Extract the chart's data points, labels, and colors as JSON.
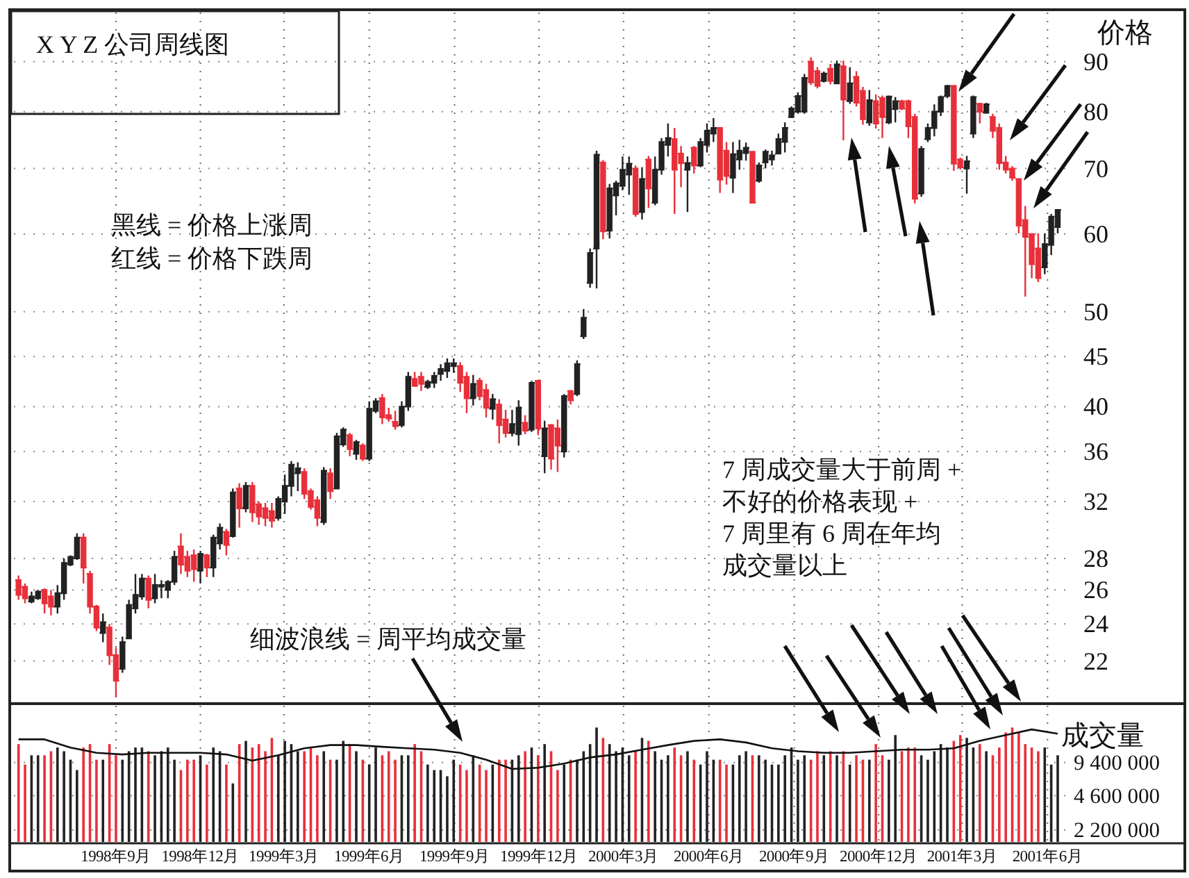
{
  "chart_data": [
    {
      "type": "candlestick",
      "title": "X Y Z 公司周线图",
      "ylabel": "价格",
      "log": true,
      "grid": true,
      "tick_labels": "y",
      "annotations": [
        "黑线 = 价格上涨周",
        "红线 = 价格下跌周",
        "7 周成交量大于前周 +",
        "不好的价格表现 +",
        "7 周里有 6 周在年均",
        "成交量以上",
        "细波浪线 = 周平均成交量"
      ],
      "ylim": [
        20,
        101
      ],
      "yticks": [
        90,
        80,
        70,
        60,
        50,
        45,
        40,
        36,
        32,
        28,
        26,
        24,
        22
      ],
      "xlim": [
        "1998-05-14",
        "2001-10-24"
      ],
      "xticks": [
        {
          "value": "1998-09-01",
          "label": null
        },
        {
          "value": "1998-12-01",
          "label": null
        },
        {
          "value": "1999-03-01",
          "label": null
        },
        {
          "value": "1999-06-01",
          "label": null
        },
        {
          "value": "1999-09-01",
          "label": null
        },
        {
          "value": "1999-12-01",
          "label": null
        },
        {
          "value": "2000-03-01",
          "label": null
        },
        {
          "value": "2000-06-01",
          "label": null
        },
        {
          "value": "2000-09-01",
          "label": null
        },
        {
          "value": "2000-12-01",
          "label": null
        },
        {
          "value": "2001-03-01",
          "label": null
        },
        {
          "value": "2001-06-01",
          "label": null
        }
      ],
      "x": [
        "1998-05-19",
        "1998-05-26",
        "1998-06-02",
        "1998-06-09",
        "1998-06-16",
        "1998-06-23",
        "1998-06-30",
        "1998-07-07",
        "1998-07-14",
        "1998-07-21",
        "1998-07-28",
        "1998-08-04",
        "1998-08-11",
        "1998-08-18",
        "1998-08-25",
        "1998-09-01",
        "1998-09-08",
        "1998-09-15",
        "1998-09-22",
        "1998-09-29",
        "1998-10-06",
        "1998-10-13",
        "1998-10-20",
        "1998-10-27",
        "1998-11-03",
        "1998-11-10",
        "1998-11-17",
        "1998-11-24",
        "1998-12-01",
        "1998-12-08",
        "1998-12-15",
        "1998-12-22",
        "1998-12-29",
        "1999-01-05",
        "1999-01-12",
        "1999-01-19",
        "1999-01-26",
        "1999-02-02",
        "1999-02-09",
        "1999-02-16",
        "1999-02-23",
        "1999-03-02",
        "1999-03-09",
        "1999-03-16",
        "1999-03-23",
        "1999-03-30",
        "1999-04-06",
        "1999-04-13",
        "1999-04-20",
        "1999-04-27",
        "1999-05-04",
        "1999-05-11",
        "1999-05-18",
        "1999-05-25",
        "1999-06-01",
        "1999-06-08",
        "1999-06-15",
        "1999-06-22",
        "1999-06-29",
        "1999-07-06",
        "1999-07-13",
        "1999-07-20",
        "1999-07-27",
        "1999-08-03",
        "1999-08-10",
        "1999-08-17",
        "1999-08-24",
        "1999-08-31",
        "1999-09-07",
        "1999-09-14",
        "1999-09-21",
        "1999-09-28",
        "1999-10-05",
        "1999-10-12",
        "1999-10-19",
        "1999-10-26",
        "1999-11-02",
        "1999-11-09",
        "1999-11-16",
        "1999-11-23",
        "1999-11-30",
        "1999-12-07",
        "1999-12-14",
        "1999-12-21",
        "1999-12-28",
        "2000-01-04",
        "2000-01-11",
        "2000-01-18",
        "2000-01-25",
        "2000-02-01",
        "2000-02-08",
        "2000-02-15",
        "2000-02-22",
        "2000-02-29",
        "2000-03-07",
        "2000-03-14",
        "2000-03-21",
        "2000-03-28",
        "2000-04-04",
        "2000-04-11",
        "2000-04-18",
        "2000-04-25",
        "2000-05-02",
        "2000-05-09",
        "2000-05-16",
        "2000-05-23",
        "2000-05-30",
        "2000-06-06",
        "2000-06-13",
        "2000-06-20",
        "2000-06-27",
        "2000-07-04",
        "2000-07-11",
        "2000-07-18",
        "2000-07-25",
        "2000-08-01",
        "2000-08-08",
        "2000-08-15",
        "2000-08-22",
        "2000-08-29",
        "2000-09-05",
        "2000-09-12",
        "2000-09-19",
        "2000-09-26",
        "2000-10-03",
        "2000-10-10",
        "2000-10-17",
        "2000-10-24",
        "2000-10-31",
        "2000-11-07",
        "2000-11-14",
        "2000-11-21",
        "2000-11-28",
        "2000-12-05",
        "2000-12-12",
        "2000-12-19",
        "2000-12-26",
        "2001-01-02",
        "2001-01-09",
        "2001-01-16",
        "2001-01-23",
        "2001-01-30",
        "2001-02-06",
        "2001-02-13",
        "2001-02-20",
        "2001-02-27",
        "2001-03-06",
        "2001-03-13",
        "2001-03-20",
        "2001-03-27",
        "2001-04-03",
        "2001-04-10",
        "2001-04-17",
        "2001-04-24",
        "2001-05-01",
        "2001-05-08",
        "2001-05-15",
        "2001-05-22",
        "2001-05-29",
        "2001-06-05",
        "2001-06-12"
      ],
      "ohlc": [
        [
          26.6,
          26.9,
          25.4,
          25.7
        ],
        [
          26.2,
          26.4,
          25.2,
          25.5
        ],
        [
          25.3,
          25.9,
          25.2,
          25.6
        ],
        [
          25.5,
          26.0,
          25.4,
          25.9
        ],
        [
          26.0,
          26.1,
          24.6,
          25.2
        ],
        [
          25.6,
          26.0,
          24.5,
          25.0
        ],
        [
          25.0,
          26.3,
          24.6,
          25.8
        ],
        [
          25.8,
          28.0,
          25.4,
          27.7
        ],
        [
          27.6,
          28.2,
          27.5,
          28.1
        ],
        [
          28.0,
          29.7,
          27.9,
          29.4
        ],
        [
          29.4,
          29.7,
          26.4,
          27.4
        ],
        [
          27.0,
          27.2,
          24.6,
          25.0
        ],
        [
          25.0,
          25.1,
          23.6,
          23.8
        ],
        [
          23.5,
          24.6,
          23.0,
          24.1
        ],
        [
          23.8,
          24.0,
          21.8,
          22.3
        ],
        [
          22.3,
          22.7,
          20.2,
          21.0
        ],
        [
          21.6,
          23.3,
          21.4,
          23.0
        ],
        [
          23.2,
          25.4,
          23.2,
          25.1
        ],
        [
          24.9,
          27.0,
          24.6,
          25.7
        ],
        [
          25.6,
          27.0,
          25.4,
          26.7
        ],
        [
          26.7,
          26.9,
          24.9,
          25.4
        ],
        [
          25.5,
          27.0,
          25.2,
          26.3
        ],
        [
          26.2,
          26.6,
          25.5,
          26.3
        ],
        [
          26.0,
          26.6,
          25.5,
          26.5
        ],
        [
          26.5,
          28.5,
          26.3,
          28.1
        ],
        [
          28.8,
          29.7,
          27.0,
          27.6
        ],
        [
          28.1,
          28.5,
          26.8,
          27.2
        ],
        [
          28.2,
          28.6,
          26.5,
          27.3
        ],
        [
          27.2,
          28.5,
          26.4,
          28.3
        ],
        [
          28.2,
          28.3,
          26.8,
          27.4
        ],
        [
          27.4,
          29.6,
          26.8,
          29.4
        ],
        [
          29.0,
          30.4,
          28.6,
          30.1
        ],
        [
          29.8,
          30.0,
          28.2,
          28.9
        ],
        [
          29.5,
          33.0,
          29.4,
          32.7
        ],
        [
          33.0,
          33.4,
          30.1,
          31.5
        ],
        [
          31.5,
          33.5,
          31.2,
          33.2
        ],
        [
          33.2,
          33.5,
          30.5,
          31.2
        ],
        [
          31.8,
          32.0,
          30.3,
          30.9
        ],
        [
          31.5,
          31.9,
          30.2,
          30.8
        ],
        [
          31.3,
          31.9,
          30.1,
          30.6
        ],
        [
          30.8,
          32.4,
          30.6,
          32.2
        ],
        [
          32.0,
          34.1,
          31.1,
          33.2
        ],
        [
          33.2,
          35.2,
          32.4,
          34.9
        ],
        [
          34.2,
          35.1,
          32.8,
          34.6
        ],
        [
          34.3,
          34.6,
          32.2,
          32.6
        ],
        [
          32.8,
          33.0,
          31.4,
          31.6
        ],
        [
          32.1,
          32.4,
          30.2,
          30.8
        ],
        [
          30.5,
          34.7,
          30.3,
          34.4
        ],
        [
          34.2,
          34.6,
          32.2,
          32.8
        ],
        [
          33.0,
          37.6,
          33.0,
          37.3
        ],
        [
          36.6,
          38.1,
          36.4,
          37.9
        ],
        [
          37.4,
          37.6,
          35.6,
          36.2
        ],
        [
          35.8,
          37.0,
          35.3,
          36.8
        ],
        [
          36.5,
          36.7,
          35.2,
          35.4
        ],
        [
          35.4,
          40.5,
          35.2,
          39.8
        ],
        [
          39.6,
          40.8,
          39.4,
          40.5
        ],
        [
          40.8,
          41.2,
          38.4,
          39.0
        ],
        [
          39.2,
          39.9,
          38.6,
          38.9
        ],
        [
          38.6,
          39.6,
          37.9,
          38.2
        ],
        [
          38.3,
          40.5,
          38.1,
          40.0
        ],
        [
          40.0,
          43.4,
          39.6,
          42.9
        ],
        [
          42.7,
          43.4,
          41.9,
          42.0
        ],
        [
          42.9,
          43.4,
          41.5,
          42.2
        ],
        [
          41.9,
          42.6,
          41.7,
          42.4
        ],
        [
          42.3,
          43.4,
          41.8,
          43.0
        ],
        [
          43.2,
          44.2,
          42.5,
          43.7
        ],
        [
          43.5,
          44.8,
          42.8,
          44.3
        ],
        [
          44.0,
          44.8,
          43.3,
          44.3
        ],
        [
          44.0,
          44.4,
          41.4,
          42.3
        ],
        [
          42.9,
          43.4,
          39.4,
          40.8
        ],
        [
          40.8,
          43.1,
          40.1,
          42.2
        ],
        [
          42.5,
          42.8,
          40.6,
          41.0
        ],
        [
          41.6,
          42.2,
          39.0,
          39.9
        ],
        [
          39.8,
          41.2,
          38.8,
          40.7
        ],
        [
          40.2,
          40.7,
          36.7,
          38.3
        ],
        [
          38.8,
          39.7,
          37.2,
          37.6
        ],
        [
          37.6,
          39.7,
          37.3,
          38.4
        ],
        [
          37.5,
          40.6,
          36.5,
          39.9
        ],
        [
          38.5,
          39.2,
          37.5,
          37.8
        ],
        [
          37.9,
          42.5,
          37.7,
          42.3
        ],
        [
          42.5,
          42.5,
          37.4,
          38.0
        ],
        [
          35.6,
          38.7,
          34.2,
          38.0
        ],
        [
          38.3,
          38.4,
          34.5,
          35.4
        ],
        [
          38.0,
          38.8,
          34.3,
          36.5
        ],
        [
          36.0,
          41.2,
          35.5,
          41.0
        ],
        [
          41.5,
          41.6,
          40.2,
          40.6
        ],
        [
          41.2,
          44.6,
          41.0,
          44.2
        ],
        [
          47.2,
          50.3,
          46.9,
          49.3
        ],
        [
          53.5,
          58.0,
          52.9,
          57.4
        ],
        [
          58.0,
          73.0,
          52.8,
          72.3
        ],
        [
          71.0,
          71.4,
          59.3,
          60.4
        ],
        [
          60.5,
          67.5,
          59.4,
          66.8
        ],
        [
          65.7,
          68.0,
          62.7,
          67.6
        ],
        [
          67.2,
          72.0,
          66.5,
          69.8
        ],
        [
          69.0,
          72.0,
          65.8,
          70.8
        ],
        [
          70.0,
          70.5,
          62.5,
          62.9
        ],
        [
          63.2,
          70.2,
          62.1,
          68.3
        ],
        [
          71.5,
          72.1,
          63.8,
          66.8
        ],
        [
          64.6,
          72.0,
          64.2,
          69.8
        ],
        [
          69.8,
          75.2,
          69.0,
          74.5
        ],
        [
          74.0,
          77.8,
          72.0,
          75.2
        ],
        [
          75.0,
          77.0,
          62.9,
          69.8
        ],
        [
          72.5,
          73.8,
          67.0,
          70.9
        ],
        [
          69.8,
          72.0,
          63.2,
          70.9
        ],
        [
          73.5,
          73.8,
          69.2,
          70.5
        ],
        [
          70.5,
          75.2,
          70.2,
          74.5
        ],
        [
          74.0,
          77.8,
          72.7,
          76.5
        ],
        [
          76.0,
          78.8,
          74.5,
          77.0
        ],
        [
          77.0,
          77.0,
          66.1,
          68.2
        ],
        [
          73.0,
          74.5,
          67.4,
          68.8
        ],
        [
          68.5,
          74.5,
          66.1,
          72.4
        ],
        [
          71.5,
          74.9,
          69.8,
          73.0
        ],
        [
          72.6,
          74.4,
          71.3,
          73.5
        ],
        [
          72.8,
          72.8,
          64.5,
          64.6
        ],
        [
          68.0,
          71.0,
          67.7,
          70.5
        ],
        [
          71.0,
          73.2,
          70.0,
          72.8
        ],
        [
          71.5,
          73.0,
          70.5,
          72.2
        ],
        [
          72.5,
          76.0,
          72.4,
          75.0
        ],
        [
          74.5,
          78.0,
          72.7,
          77.0
        ],
        [
          79.0,
          81.0,
          78.8,
          80.6
        ],
        [
          80.0,
          83.7,
          79.6,
          83.0
        ],
        [
          80.0,
          87.4,
          79.6,
          86.6
        ],
        [
          90.0,
          90.9,
          85.2,
          85.7
        ],
        [
          88.0,
          88.8,
          84.5,
          85.0
        ],
        [
          86.0,
          87.9,
          85.7,
          87.5
        ],
        [
          88.5,
          89.5,
          85.3,
          86.0
        ],
        [
          85.5,
          90.2,
          85.5,
          89.4
        ],
        [
          89.0,
          90.2,
          74.8,
          82.3
        ],
        [
          82.0,
          88.8,
          81.5,
          85.5
        ],
        [
          86.8,
          88.0,
          81.0,
          81.7
        ],
        [
          84.0,
          84.8,
          77.6,
          78.6
        ],
        [
          78.0,
          84.2,
          77.4,
          82.2
        ],
        [
          82.0,
          83.3,
          76.9,
          77.8
        ],
        [
          82.6,
          83.1,
          75.2,
          79.0
        ],
        [
          78.0,
          83.1,
          77.7,
          82.9
        ],
        [
          80.5,
          82.8,
          78.0,
          82.0
        ],
        [
          82.0,
          82.3,
          80.3,
          80.6
        ],
        [
          82.0,
          82.3,
          75.2,
          77.3
        ],
        [
          79.0,
          79.6,
          64.5,
          65.2
        ],
        [
          66.0,
          73.8,
          65.5,
          73.3
        ],
        [
          75.0,
          77.8,
          74.5,
          77.0
        ],
        [
          77.0,
          81.4,
          75.5,
          80.0
        ],
        [
          80.0,
          83.1,
          79.2,
          82.8
        ],
        [
          83.0,
          85.2,
          82.6,
          85.0
        ],
        [
          85.0,
          85.2,
          69.6,
          70.8
        ],
        [
          71.5,
          71.8,
          69.8,
          70.2
        ],
        [
          70.0,
          72.1,
          66.0,
          71.2
        ],
        [
          76.0,
          83.1,
          75.2,
          82.8
        ],
        [
          81.5,
          81.7,
          77.8,
          80.0
        ],
        [
          79.8,
          81.7,
          79.6,
          81.4
        ],
        [
          79.0,
          79.6,
          75.2,
          76.5
        ],
        [
          77.0,
          77.8,
          69.8,
          70.9
        ],
        [
          71.0,
          72.1,
          69.2,
          69.8
        ],
        [
          70.0,
          70.4,
          68.0,
          68.5
        ],
        [
          68.3,
          68.3,
          60.1,
          61.2
        ],
        [
          62.0,
          64.1,
          51.8,
          59.6
        ],
        [
          60.0,
          60.1,
          54.1,
          55.9
        ],
        [
          58.0,
          60.1,
          53.6,
          54.1
        ],
        [
          55.5,
          60.1,
          54.6,
          58.6
        ],
        [
          58.5,
          62.9,
          57.1,
          62.5
        ],
        [
          61.0,
          63.5,
          60.1,
          63.5
        ]
      ],
      "colors": [
        "#e8303a",
        "#e8303a",
        "#222222",
        "#222222",
        "#e8303a",
        "#e8303a",
        "#222222",
        "#222222",
        "#222222",
        "#222222",
        "#e8303a",
        "#e8303a",
        "#e8303a",
        "#222222",
        "#e8303a",
        "#e8303a",
        "#222222",
        "#222222",
        "#222222",
        "#222222",
        "#e8303a",
        "#222222",
        "#222222",
        "#222222",
        "#222222",
        "#e8303a",
        "#e8303a",
        "#e8303a",
        "#222222",
        "#e8303a",
        "#222222",
        "#222222",
        "#e8303a",
        "#222222",
        "#e8303a",
        "#222222",
        "#e8303a",
        "#e8303a",
        "#e8303a",
        "#e8303a",
        "#222222",
        "#222222",
        "#222222",
        "#222222",
        "#e8303a",
        "#e8303a",
        "#e8303a",
        "#222222",
        "#e8303a",
        "#222222",
        "#222222",
        "#e8303a",
        "#222222",
        "#e8303a",
        "#222222",
        "#222222",
        "#e8303a",
        "#e8303a",
        "#e8303a",
        "#222222",
        "#222222",
        "#e8303a",
        "#e8303a",
        "#222222",
        "#222222",
        "#222222",
        "#222222",
        "#222222",
        "#e8303a",
        "#e8303a",
        "#222222",
        "#e8303a",
        "#e8303a",
        "#222222",
        "#e8303a",
        "#e8303a",
        "#222222",
        "#222222",
        "#e8303a",
        "#222222",
        "#e8303a",
        "#222222",
        "#e8303a",
        "#e8303a",
        "#222222",
        "#e8303a",
        "#222222",
        "#222222",
        "#222222",
        "#222222",
        "#e8303a",
        "#222222",
        "#222222",
        "#222222",
        "#222222",
        "#e8303a",
        "#222222",
        "#e8303a",
        "#222222",
        "#222222",
        "#222222",
        "#e8303a",
        "#e8303a",
        "#222222",
        "#e8303a",
        "#222222",
        "#222222",
        "#222222",
        "#e8303a",
        "#e8303a",
        "#222222",
        "#222222",
        "#222222",
        "#e8303a",
        "#222222",
        "#222222",
        "#222222",
        "#222222",
        "#222222",
        "#222222",
        "#222222",
        "#222222",
        "#e8303a",
        "#e8303a",
        "#222222",
        "#e8303a",
        "#222222",
        "#e8303a",
        "#222222",
        "#e8303a",
        "#e8303a",
        "#222222",
        "#e8303a",
        "#e8303a",
        "#222222",
        "#222222",
        "#e8303a",
        "#e8303a",
        "#e8303a",
        "#222222",
        "#222222",
        "#222222",
        "#222222",
        "#222222",
        "#e8303a",
        "#e8303a",
        "#222222",
        "#222222",
        "#e8303a",
        "#222222",
        "#e8303a",
        "#e8303a",
        "#e8303a",
        "#e8303a",
        "#e8303a",
        "#e8303a",
        "#e8303a",
        "#e8303a",
        "#222222",
        "#222222",
        "#222222"
      ]
    },
    {
      "type": "bar",
      "ylabel": "成交量",
      "log": "y",
      "grid": true,
      "ylim": [
        1700000,
        32000000
      ],
      "yticks": [
        {
          "value": 9400000,
          "label": "9 400 000"
        },
        {
          "value": 4600000,
          "label": "4 600 000"
        },
        {
          "value": 2200000,
          "label": "2 200 000"
        }
      ],
      "xlim": [
        "1998-05-14",
        "2001-10-24"
      ],
      "xticks": [
        {
          "value": "1998-09-01",
          "label": "1998年9月"
        },
        {
          "value": "1998-12-01",
          "label": "1998年12月"
        },
        {
          "value": "1999-03-01",
          "label": "1999年3月"
        },
        {
          "value": "1999-06-01",
          "label": "1999年6月"
        },
        {
          "value": "1999-09-01",
          "label": "1999年9月"
        },
        {
          "value": "1999-12-01",
          "label": "1999年12月"
        },
        {
          "value": "2000-03-01",
          "label": "2000年3月"
        },
        {
          "value": "2000-06-01",
          "label": "2000年6月"
        },
        {
          "value": "2000-09-01",
          "label": "2000年9月"
        },
        {
          "value": "2000-12-01",
          "label": "2000年12月"
        },
        {
          "value": "2001-03-01",
          "label": "2001年3月"
        },
        {
          "value": "2001-06-01",
          "label": "2001年6月"
        }
      ],
      "x": [
        "1998-05-19",
        "1998-05-26",
        "1998-06-02",
        "1998-06-09",
        "1998-06-16",
        "1998-06-23",
        "1998-06-30",
        "1998-07-07",
        "1998-07-14",
        "1998-07-21",
        "1998-07-28",
        "1998-08-04",
        "1998-08-11",
        "1998-08-18",
        "1998-08-25",
        "1998-09-01",
        "1998-09-08",
        "1998-09-15",
        "1998-09-22",
        "1998-09-29",
        "1998-10-06",
        "1998-10-13",
        "1998-10-20",
        "1998-10-27",
        "1998-11-03",
        "1998-11-10",
        "1998-11-17",
        "1998-11-24",
        "1998-12-01",
        "1998-12-08",
        "1998-12-15",
        "1998-12-22",
        "1998-12-29",
        "1999-01-05",
        "1999-01-12",
        "1999-01-19",
        "1999-01-26",
        "1999-02-02",
        "1999-02-09",
        "1999-02-16",
        "1999-02-23",
        "1999-03-02",
        "1999-03-09",
        "1999-03-16",
        "1999-03-23",
        "1999-03-30",
        "1999-04-06",
        "1999-04-13",
        "1999-04-20",
        "1999-04-27",
        "1999-05-04",
        "1999-05-11",
        "1999-05-18",
        "1999-05-25",
        "1999-06-01",
        "1999-06-08",
        "1999-06-15",
        "1999-06-22",
        "1999-06-29",
        "1999-07-06",
        "1999-07-13",
        "1999-07-20",
        "1999-07-27",
        "1999-08-03",
        "1999-08-10",
        "1999-08-17",
        "1999-08-24",
        "1999-08-31",
        "1999-09-07",
        "1999-09-14",
        "1999-09-21",
        "1999-09-28",
        "1999-10-05",
        "1999-10-12",
        "1999-10-19",
        "1999-10-26",
        "1999-11-02",
        "1999-11-09",
        "1999-11-16",
        "1999-11-23",
        "1999-11-30",
        "1999-12-07",
        "1999-12-14",
        "1999-12-21",
        "1999-12-28",
        "2000-01-04",
        "2000-01-11",
        "2000-01-18",
        "2000-01-25",
        "2000-02-01",
        "2000-02-08",
        "2000-02-15",
        "2000-02-22",
        "2000-02-29",
        "2000-03-07",
        "2000-03-14",
        "2000-03-21",
        "2000-03-28",
        "2000-04-04",
        "2000-04-11",
        "2000-04-18",
        "2000-04-25",
        "2000-05-02",
        "2000-05-09",
        "2000-05-16",
        "2000-05-23",
        "2000-05-30",
        "2000-06-06",
        "2000-06-13",
        "2000-06-20",
        "2000-06-27",
        "2000-07-04",
        "2000-07-11",
        "2000-07-18",
        "2000-07-25",
        "2000-08-01",
        "2000-08-08",
        "2000-08-15",
        "2000-08-22",
        "2000-08-29",
        "2000-09-05",
        "2000-09-12",
        "2000-09-19",
        "2000-09-26",
        "2000-10-03",
        "2000-10-10",
        "2000-10-17",
        "2000-10-24",
        "2000-10-31",
        "2000-11-07",
        "2000-11-14",
        "2000-11-21",
        "2000-11-28",
        "2000-12-05",
        "2000-12-12",
        "2000-12-19",
        "2000-12-26",
        "2001-01-02",
        "2001-01-09",
        "2001-01-16",
        "2001-01-23",
        "2001-01-30",
        "2001-02-06",
        "2001-02-13",
        "2001-02-20",
        "2001-02-27",
        "2001-03-06",
        "2001-03-13",
        "2001-03-20",
        "2001-03-27",
        "2001-04-03",
        "2001-04-10",
        "2001-04-17",
        "2001-04-24",
        "2001-05-01",
        "2001-05-08",
        "2001-05-15",
        "2001-05-22",
        "2001-05-29",
        "2001-06-05",
        "2001-06-12"
      ],
      "series": [
        {
          "values": [
            14000000,
            9000000,
            11000000,
            11000000,
            11000000,
            12000000,
            13000000,
            12000000,
            10000000,
            8000000,
            13000000,
            14000000,
            10000000,
            10000000,
            14000000,
            11000000,
            10000000,
            12000000,
            13000000,
            13000000,
            12000000,
            11000000,
            12000000,
            13000000,
            10000000,
            8000000,
            10000000,
            10000000,
            11000000,
            9000000,
            13000000,
            12000000,
            9000000,
            6000000,
            14000000,
            15000000,
            13000000,
            14000000,
            12000000,
            16000000,
            11000000,
            15000000,
            14000000,
            12000000,
            12000000,
            13000000,
            11000000,
            12000000,
            10000000,
            10000000,
            15000000,
            14000000,
            12000000,
            10000000,
            9000000,
            13000000,
            11000000,
            12000000,
            10000000,
            11000000,
            11000000,
            14000000,
            12000000,
            9000000,
            8000000,
            8000000,
            7000000,
            10000000,
            9000000,
            8000000,
            11000000,
            9000000,
            8000000,
            9000000,
            10000000,
            10000000,
            10000000,
            11000000,
            12000000,
            13000000,
            11000000,
            14000000,
            12000000,
            8000000,
            9000000,
            10000000,
            10000000,
            12000000,
            14000000,
            20000000,
            16000000,
            14000000,
            12000000,
            13000000,
            11000000,
            12000000,
            16000000,
            15000000,
            12000000,
            10000000,
            11000000,
            13000000,
            11000000,
            12000000,
            10000000,
            9000000,
            12000000,
            10000000,
            10000000,
            9000000,
            9000000,
            11000000,
            12000000,
            11000000,
            11000000,
            10000000,
            9000000,
            9000000,
            11000000,
            13000000,
            10000000,
            11000000,
            10000000,
            12000000,
            11000000,
            12000000,
            11000000,
            12000000,
            9000000,
            11000000,
            10000000,
            10000000,
            14000000,
            11000000,
            10000000,
            17000000,
            12000000,
            13000000,
            13000000,
            11000000,
            10000000,
            12000000,
            14000000,
            13000000,
            15000000,
            17000000,
            16000000,
            13000000,
            14000000,
            12000000,
            11000000,
            13000000,
            18000000,
            20000000,
            18000000,
            14000000,
            13000000,
            12000000,
            13000000,
            9000000,
            11000000
          ],
          "colors": [
            "#e8303a",
            "#e8303a",
            "#222222",
            "#222222",
            "#e8303a",
            "#e8303a",
            "#222222",
            "#222222",
            "#222222",
            "#222222",
            "#e8303a",
            "#e8303a",
            "#e8303a",
            "#222222",
            "#e8303a",
            "#e8303a",
            "#222222",
            "#222222",
            "#222222",
            "#222222",
            "#e8303a",
            "#222222",
            "#222222",
            "#222222",
            "#222222",
            "#e8303a",
            "#e8303a",
            "#e8303a",
            "#222222",
            "#e8303a",
            "#222222",
            "#222222",
            "#e8303a",
            "#222222",
            "#e8303a",
            "#222222",
            "#e8303a",
            "#e8303a",
            "#e8303a",
            "#e8303a",
            "#222222",
            "#222222",
            "#222222",
            "#222222",
            "#e8303a",
            "#e8303a",
            "#e8303a",
            "#222222",
            "#e8303a",
            "#222222",
            "#222222",
            "#e8303a",
            "#222222",
            "#e8303a",
            "#222222",
            "#222222",
            "#e8303a",
            "#e8303a",
            "#e8303a",
            "#222222",
            "#222222",
            "#e8303a",
            "#e8303a",
            "#222222",
            "#222222",
            "#222222",
            "#222222",
            "#222222",
            "#e8303a",
            "#e8303a",
            "#222222",
            "#e8303a",
            "#e8303a",
            "#222222",
            "#e8303a",
            "#e8303a",
            "#222222",
            "#222222",
            "#e8303a",
            "#222222",
            "#e8303a",
            "#222222",
            "#e8303a",
            "#e8303a",
            "#222222",
            "#e8303a",
            "#222222",
            "#222222",
            "#222222",
            "#222222",
            "#e8303a",
            "#222222",
            "#222222",
            "#222222",
            "#222222",
            "#e8303a",
            "#222222",
            "#e8303a",
            "#222222",
            "#222222",
            "#222222",
            "#e8303a",
            "#e8303a",
            "#222222",
            "#e8303a",
            "#222222",
            "#222222",
            "#222222",
            "#e8303a",
            "#e8303a",
            "#222222",
            "#222222",
            "#222222",
            "#e8303a",
            "#222222",
            "#222222",
            "#222222",
            "#222222",
            "#222222",
            "#222222",
            "#222222",
            "#222222",
            "#e8303a",
            "#e8303a",
            "#222222",
            "#e8303a",
            "#222222",
            "#e8303a",
            "#222222",
            "#e8303a",
            "#e8303a",
            "#222222",
            "#e8303a",
            "#e8303a",
            "#222222",
            "#222222",
            "#e8303a",
            "#e8303a",
            "#e8303a",
            "#222222",
            "#222222",
            "#222222",
            "#222222",
            "#222222",
            "#e8303a",
            "#e8303a",
            "#222222",
            "#222222",
            "#e8303a",
            "#222222",
            "#e8303a",
            "#e8303a",
            "#e8303a",
            "#e8303a",
            "#e8303a",
            "#e8303a",
            "#e8303a",
            "#e8303a",
            "#222222",
            "#222222",
            "#222222"
          ]
        },
        {
          "type": "line",
          "color": "#111111",
          "x": [
            "1998-05-19",
            "1998-06-16",
            "1998-07-14",
            "1998-08-11",
            "1998-09-08",
            "1998-10-06",
            "1998-11-03",
            "1998-12-01",
            "1998-12-29",
            "1999-01-26",
            "1999-02-23",
            "1999-03-23",
            "1999-04-20",
            "1999-05-18",
            "1999-06-15",
            "1999-07-13",
            "1999-08-10",
            "1999-09-07",
            "1999-10-05",
            "1999-11-02",
            "1999-11-30",
            "1999-12-28",
            "2000-01-25",
            "2000-02-22",
            "2000-03-21",
            "2000-04-18",
            "2000-05-16",
            "2000-06-13",
            "2000-07-11",
            "2000-08-08",
            "2000-09-05",
            "2000-10-03",
            "2000-10-31",
            "2000-11-28",
            "2000-12-26",
            "2001-01-23",
            "2001-02-20",
            "2001-03-20",
            "2001-04-17",
            "2001-05-15",
            "2001-06-12"
          ],
          "values": [
            15500000,
            15500000,
            13000000,
            11600000,
            11200000,
            11600000,
            11600000,
            11600000,
            11200000,
            9800000,
            11000000,
            12800000,
            13700000,
            13700000,
            13200000,
            12800000,
            12400000,
            11600000,
            10000000,
            8200000,
            8400000,
            9200000,
            10500000,
            11200000,
            12400000,
            13700000,
            15000000,
            15500000,
            14500000,
            12800000,
            12000000,
            11600000,
            11600000,
            12000000,
            12400000,
            12400000,
            12800000,
            15000000,
            17000000,
            19200000,
            17500000
          ]
        }
      ]
    }
  ]
}
